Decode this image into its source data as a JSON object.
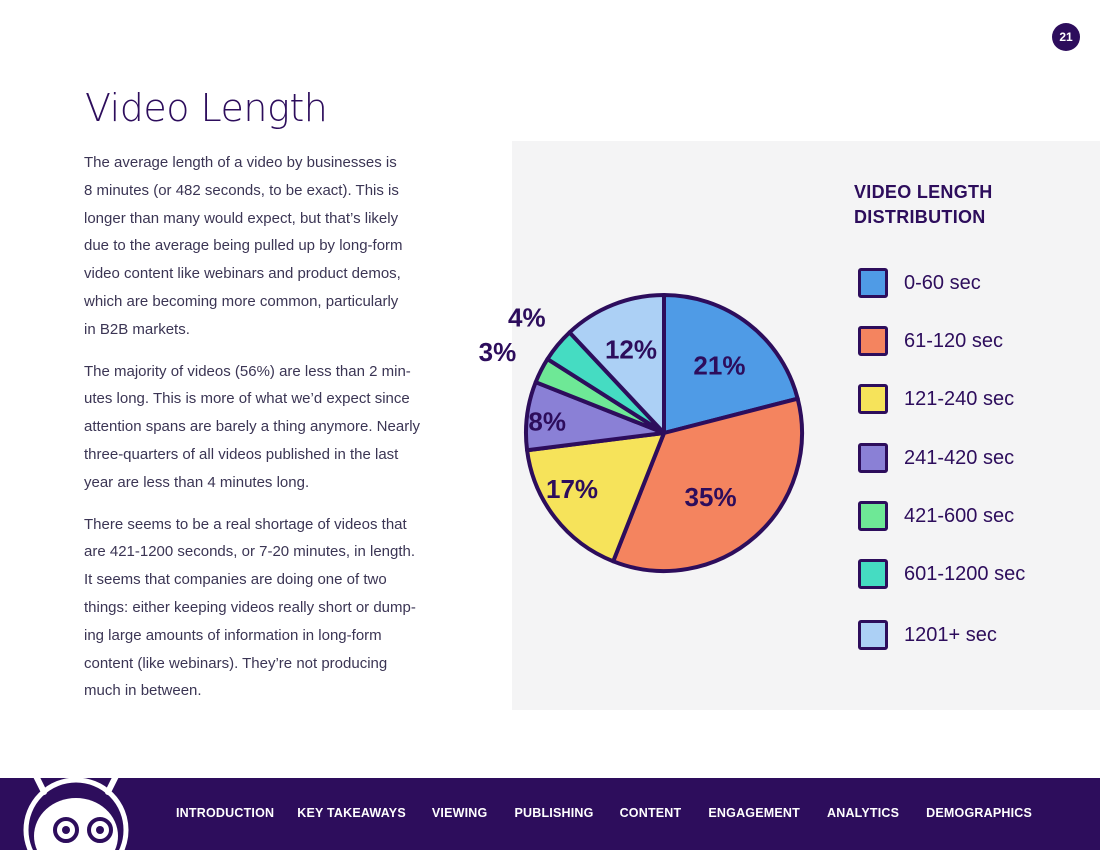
{
  "page_number": "21",
  "title": "Video Length",
  "paragraphs": [
    [
      "The average length of a video by businesses is",
      "8 minutes (or 482 seconds, to be exact). This is",
      "longer than many would expect, but that’s likely",
      "due to the average being pulled up by long-form",
      "video content like webinars and product demos,",
      "which are becoming more common, particularly",
      "in B2B markets."
    ],
    [
      "The majority of videos (56%) are less than 2 min-",
      "utes long. This is more of what we’d expect since",
      "attention spans are barely a thing anymore. Nearly",
      "three-quarters of all videos published in the last",
      "year are less than 4 minutes long."
    ],
    [
      "There seems to be a real shortage of videos that",
      "are 421-1200 seconds, or 7-20 minutes, in length.",
      "It seems that companies are doing one of two",
      "things: either keeping videos really short or dump-",
      "ing large amounts of information in long-form",
      "content (like webinars). They’re not producing",
      "much in between."
    ]
  ],
  "chart_data": {
    "type": "pie",
    "title": "VIDEO LENGTH DISTRIBUTION",
    "legend_position": "right",
    "categories": [
      "0-60 sec",
      "61-120 sec",
      "121-240 sec",
      "241-420 sec",
      "421-600 sec",
      "601-1200 sec",
      "1201+ sec"
    ],
    "values": [
      21,
      35,
      17,
      8,
      3,
      4,
      12
    ],
    "labels": [
      "21%",
      "35%",
      "17%",
      "8%",
      "3%",
      "4%",
      "12%"
    ],
    "colors": [
      "#4f9be6",
      "#f4845f",
      "#f6e35a",
      "#8a80d6",
      "#6ee896",
      "#45dcc2",
      "#acd0f5"
    ],
    "outline_color": "#2d0d5c"
  },
  "nav": [
    "INTRODUCTION",
    "KEY TAKEAWAYS",
    "VIEWING",
    "PUBLISHING",
    "CONTENT",
    "ENGAGEMENT",
    "ANALYTICS",
    "DEMOGRAPHICS"
  ]
}
